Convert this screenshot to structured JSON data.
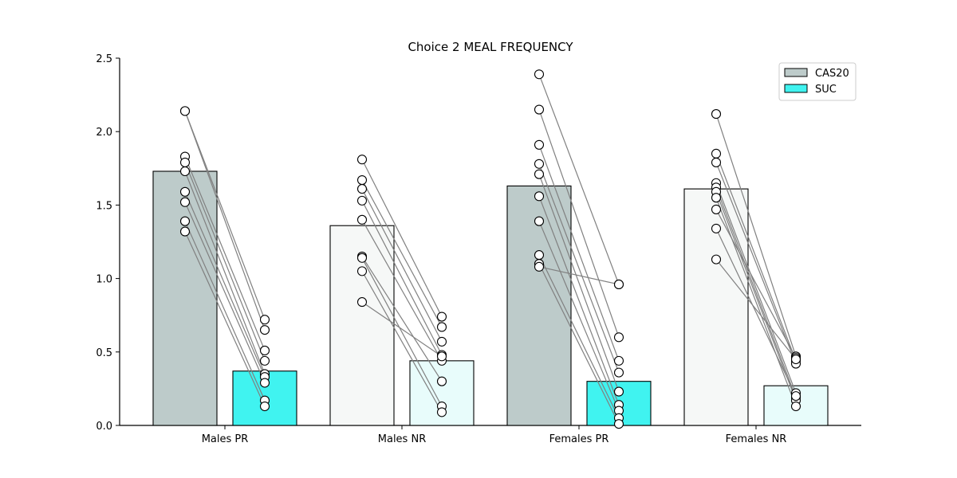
{
  "chart_data": {
    "type": "bar",
    "title": "Choice  2 MEAL FREQUENCY",
    "xlabel": "",
    "ylabel": "",
    "ylim": [
      0,
      2.5
    ],
    "yticks": [
      "0.0",
      "0.5",
      "1.0",
      "1.5",
      "2.0",
      "2.5"
    ],
    "categories": [
      "Males PR",
      "Males NR",
      "Females PR",
      "Females NR"
    ],
    "legend_position": "top-right",
    "grid": false,
    "series": [
      {
        "name": "CAS20",
        "values": [
          1.73,
          1.36,
          1.63,
          1.61
        ]
      },
      {
        "name": "SUC",
        "values": [
          0.37,
          0.44,
          0.3,
          0.27
        ]
      }
    ],
    "bar_colors": [
      [
        "#bdcbca",
        "#40f3f0"
      ],
      [
        "#f6f8f7",
        "#e8fcfb"
      ],
      [
        "#bdcbca",
        "#40f3f0"
      ],
      [
        "#f6f8f7",
        "#e8fcfb"
      ]
    ],
    "legend_colors": [
      "#bdcbca",
      "#40f3f0"
    ],
    "line_color": "#808080",
    "paired_points": [
      {
        "cas": [
          2.14,
          2.14,
          1.83,
          1.79,
          1.73,
          1.59,
          1.52,
          1.39,
          1.32
        ],
        "suc": [
          0.72,
          0.65,
          0.51,
          0.44,
          0.35,
          0.33,
          0.29,
          0.17,
          0.13
        ]
      },
      {
        "cas": [
          1.81,
          1.67,
          1.61,
          1.53,
          1.4,
          1.15,
          1.14,
          1.05,
          0.84
        ],
        "suc": [
          0.74,
          0.67,
          0.57,
          0.48,
          0.44,
          0.3,
          0.13,
          0.09,
          0.47
        ]
      },
      {
        "cas": [
          2.39,
          2.15,
          1.91,
          1.78,
          1.71,
          1.56,
          1.39,
          1.16,
          1.1,
          1.08
        ],
        "suc": [
          0.96,
          0.6,
          0.44,
          0.36,
          0.23,
          0.14,
          0.1,
          0.05,
          0.01,
          0.96
        ]
      },
      {
        "cas": [
          2.12,
          1.85,
          1.79,
          1.65,
          1.62,
          1.59,
          1.55,
          1.47,
          1.34,
          1.13
        ],
        "suc": [
          0.47,
          0.44,
          0.42,
          0.22,
          0.19,
          0.17,
          0.13,
          0.46,
          0.2,
          0.45
        ]
      }
    ]
  }
}
